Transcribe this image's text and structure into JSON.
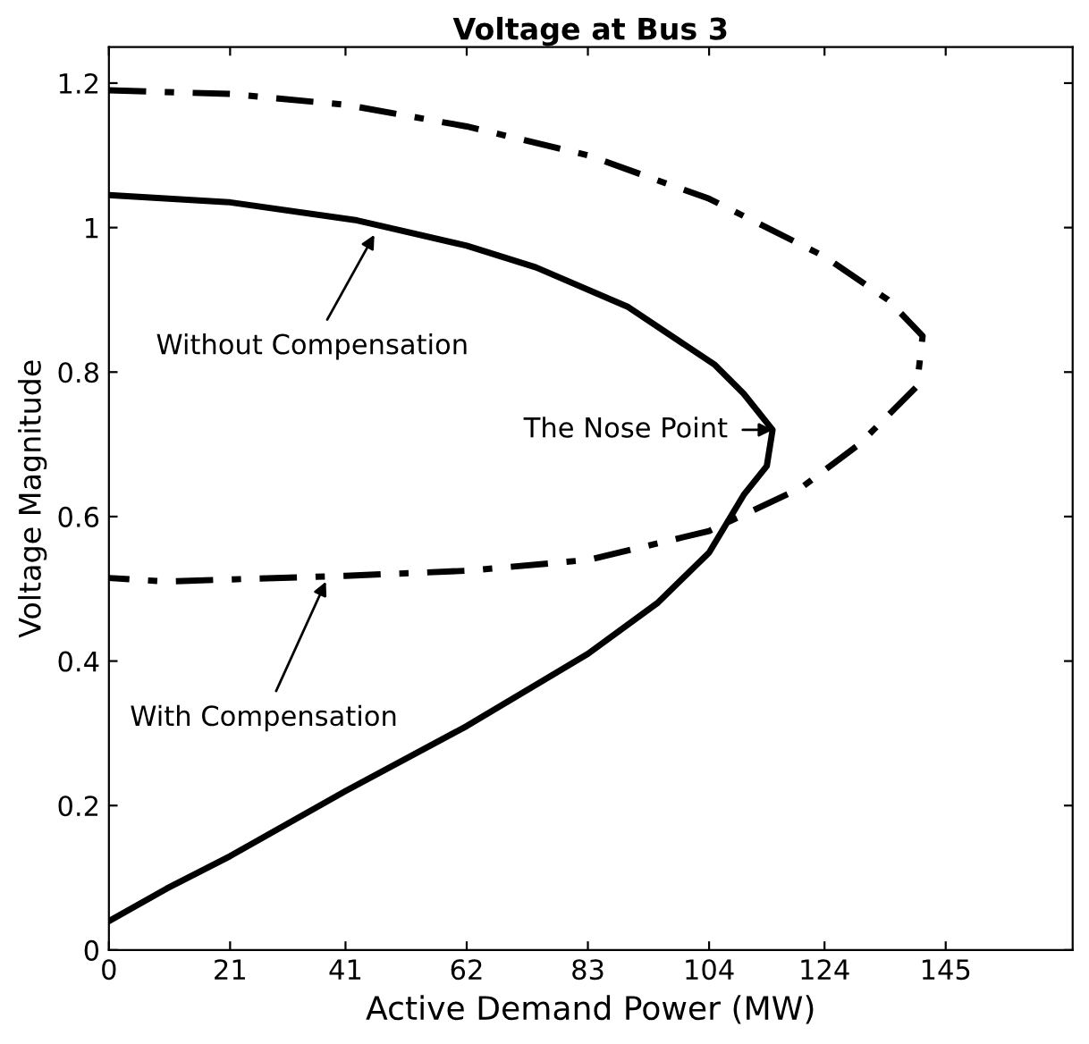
{
  "chart_data": {
    "type": "line",
    "title": "Voltage at Bus 3",
    "xlabel": "Active Demand Power (MW)",
    "ylabel": "Voltage Magnitude",
    "xlim": [
      0,
      167
    ],
    "xticks": [
      0,
      21,
      41,
      62,
      83,
      104,
      124,
      145
    ],
    "ylim": [
      0,
      1.25
    ],
    "yticks": [
      0,
      0.2,
      0.4,
      0.6,
      0.8,
      1,
      1.2
    ],
    "grid": false,
    "legend": false,
    "marker": "none",
    "series": [
      {
        "color": "#000000",
        "line_style": "solid",
        "x": [
          0,
          21,
          43,
          62,
          74,
          90,
          105,
          110,
          113,
          115,
          114,
          110,
          104,
          95,
          83,
          62,
          41,
          21,
          10,
          0
        ],
        "values": [
          1.045,
          1.035,
          1.01,
          0.975,
          0.945,
          0.89,
          0.81,
          0.77,
          0.74,
          0.72,
          0.67,
          0.63,
          0.55,
          0.48,
          0.41,
          0.31,
          0.22,
          0.13,
          0.085,
          0.04
        ]
      },
      {
        "color": "#000000",
        "line_style": "dashed",
        "x": [
          0,
          21,
          41,
          62,
          83,
          104,
          124,
          135,
          141,
          140,
          130,
          120,
          104,
          83,
          62,
          41,
          21,
          10,
          0
        ],
        "values": [
          1.19,
          1.185,
          1.17,
          1.14,
          1.1,
          1.04,
          0.96,
          0.9,
          0.85,
          0.78,
          0.7,
          0.64,
          0.58,
          0.54,
          0.525,
          0.518,
          0.513,
          0.51,
          0.515
        ]
      }
    ],
    "annotations": [
      {
        "text": "Without Compensation",
        "x": 46,
        "y": 0.99
      },
      {
        "text": "The Nose Point",
        "x": 115,
        "y": 0.72
      },
      {
        "text": "With Compensation",
        "x": 37.6,
        "y": 0.51
      }
    ]
  }
}
